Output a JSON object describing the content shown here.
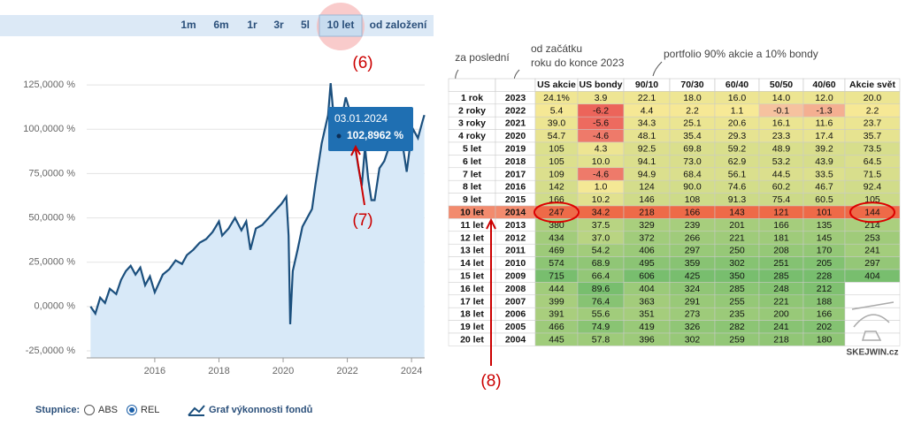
{
  "chart_data": {
    "type": "line",
    "x": [
      2014.0,
      2014.15,
      2014.3,
      2014.45,
      2014.6,
      2014.8,
      2014.95,
      2015.1,
      2015.25,
      2015.4,
      2015.55,
      2015.7,
      2015.85,
      2016.0,
      2016.1,
      2016.25,
      2016.45,
      2016.65,
      2016.85,
      2017.0,
      2017.2,
      2017.4,
      2017.6,
      2017.8,
      2018.0,
      2018.1,
      2018.3,
      2018.5,
      2018.7,
      2018.85,
      2018.98,
      2019.15,
      2019.35,
      2019.55,
      2019.75,
      2019.95,
      2020.1,
      2020.17,
      2020.22,
      2020.3,
      2020.45,
      2020.6,
      2020.75,
      2020.9,
      2021.0,
      2021.1,
      2021.2,
      2021.3,
      2021.4,
      2021.48,
      2021.55,
      2021.65,
      2021.8,
      2021.95,
      2022.05,
      2022.2,
      2022.35,
      2022.45,
      2022.55,
      2022.65,
      2022.75,
      2022.85,
      2023.0,
      2023.15,
      2023.3,
      2023.45,
      2023.6,
      2023.75,
      2023.85,
      2023.95,
      2024.05,
      2024.2,
      2024.35,
      2024.4
    ],
    "series": [
      {
        "color": "#1b4f7d",
        "values": [
          0,
          -4,
          5,
          2,
          10,
          7,
          15,
          20,
          23,
          18,
          22,
          12,
          17,
          8,
          12,
          18,
          21,
          26,
          24,
          29,
          32,
          36,
          38,
          42,
          48,
          40,
          44,
          50,
          43,
          48,
          32,
          44,
          46,
          50,
          54,
          58,
          62,
          40,
          -10,
          20,
          32,
          45,
          50,
          55,
          68,
          80,
          92,
          100,
          108,
          126,
          112,
          110,
          104,
          118,
          112,
          95,
          78,
          68,
          90,
          72,
          60,
          60,
          78,
          82,
          90,
          100,
          95,
          88,
          76,
          90,
          100,
          95,
          105,
          108
        ]
      }
    ],
    "xlim": [
      2013.88,
      2024.41
    ],
    "ylim": [
      -29,
      152
    ],
    "xticks": [
      2016,
      2018,
      2020,
      2022,
      2024
    ],
    "yticks": [
      {
        "value": -25,
        "label": "-25,0000 %"
      },
      {
        "value": 0,
        "label": "0,0000 %"
      },
      {
        "value": 25,
        "label": "25,0000 %"
      },
      {
        "value": 50,
        "label": "50,0000 %"
      },
      {
        "value": 75,
        "label": "75,0000 %"
      },
      {
        "value": 100,
        "label": "100,0000 %"
      },
      {
        "value": 125,
        "label": "125,0000 %"
      }
    ],
    "grid": true,
    "area_color": "#d8e9f8",
    "tooltip": {
      "date": "03.01.2024",
      "value": "102,8962 %"
    }
  },
  "toolbar": [
    "1m",
    "6m",
    "1r",
    "3r",
    "5l",
    "10 let",
    "od založení"
  ],
  "callouts": [
    "(6)",
    "(7)",
    "(8)"
  ],
  "footer": {
    "scale_label": "Stupnice:",
    "options": [
      "ABS",
      "REL"
    ],
    "fund_chart": "Graf výkonnosti fondů"
  },
  "table": {
    "notes": [
      "za poslední",
      "od začátku",
      "roku do konce 2023",
      "portfolio 90% akcie a 10% bondy"
    ],
    "header": [
      null,
      null,
      "US akcie",
      "US bondy",
      "90/10",
      "70/30",
      "60/40",
      "50/50",
      "40/60",
      "Akcie svět"
    ],
    "rows": [
      [
        "1 rok",
        "2023",
        "24.1%",
        "3.9",
        "22.1",
        "18.0",
        "16.0",
        "14.0",
        "12.0",
        "20.0"
      ],
      [
        "2 roky",
        "2022",
        "5.4",
        "-6.2",
        "4.4",
        "2.2",
        "1.1",
        "-0.1",
        "-1.3",
        "2.2"
      ],
      [
        "3 roky",
        "2021",
        "39.0",
        "-5.6",
        "34.3",
        "25.1",
        "20.6",
        "16.1",
        "11.6",
        "23.7"
      ],
      [
        "4 roky",
        "2020",
        "54.7",
        "-4.6",
        "48.1",
        "35.4",
        "29.3",
        "23.3",
        "17.4",
        "35.7"
      ],
      [
        "5 let",
        "2019",
        "105",
        "4.3",
        "92.5",
        "69.8",
        "59.2",
        "48.9",
        "39.2",
        "73.5"
      ],
      [
        "6 let",
        "2018",
        "105",
        "10.0",
        "94.1",
        "73.0",
        "62.9",
        "53.2",
        "43.9",
        "64.5"
      ],
      [
        "7 let",
        "2017",
        "109",
        "-4.6",
        "94.9",
        "68.4",
        "56.1",
        "44.5",
        "33.5",
        "71.5"
      ],
      [
        "8 let",
        "2016",
        "142",
        "1.0",
        "124",
        "90.0",
        "74.6",
        "60.2",
        "46.7",
        "92.4"
      ],
      [
        "9 let",
        "2015",
        "166",
        "10.2",
        "146",
        "108",
        "91.3",
        "75.4",
        "60.5",
        "105"
      ],
      [
        "10 let",
        "2014",
        "247",
        "34.2",
        "218",
        "166",
        "143",
        "121",
        "101",
        "144"
      ],
      [
        "11 let",
        "2013",
        "380",
        "37.5",
        "329",
        "239",
        "201",
        "166",
        "135",
        "214"
      ],
      [
        "12 let",
        "2012",
        "434",
        "37.0",
        "372",
        "266",
        "221",
        "181",
        "145",
        "253"
      ],
      [
        "13 let",
        "2011",
        "469",
        "54.2",
        "406",
        "297",
        "250",
        "208",
        "170",
        "241"
      ],
      [
        "14 let",
        "2010",
        "574",
        "68.9",
        "495",
        "359",
        "302",
        "251",
        "205",
        "297"
      ],
      [
        "15 let",
        "2009",
        "715",
        "66.4",
        "606",
        "425",
        "350",
        "285",
        "228",
        "404"
      ],
      [
        "16 let",
        "2008",
        "444",
        "89.6",
        "404",
        "324",
        "285",
        "248",
        "212",
        null
      ],
      [
        "17 let",
        "2007",
        "399",
        "76.4",
        "363",
        "291",
        "255",
        "221",
        "188",
        null
      ],
      [
        "18 let",
        "2006",
        "391",
        "55.6",
        "351",
        "273",
        "235",
        "200",
        "166",
        null
      ],
      [
        "19 let",
        "2005",
        "466",
        "74.9",
        "419",
        "326",
        "282",
        "241",
        "202",
        null
      ],
      [
        "20 let",
        "2004",
        "445",
        "57.8",
        "396",
        "302",
        "259",
        "218",
        "180",
        null
      ]
    ]
  },
  "watermark": "SKEJWIN.cz"
}
